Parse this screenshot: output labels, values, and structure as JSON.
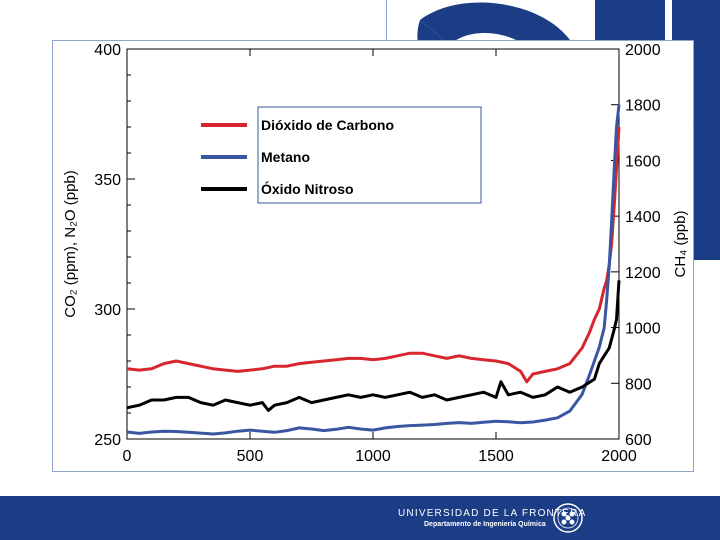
{
  "chart_data": {
    "type": "line",
    "title": "",
    "xlabel": "",
    "ylabel_left": "CO₂ (ppm), N₂O (ppb)",
    "ylabel_right": "CH₄ (ppb)",
    "xlim": [
      0,
      2000
    ],
    "ylim_left": [
      250,
      400
    ],
    "ylim_right": [
      600,
      2000
    ],
    "x_ticks": [
      "0",
      "500",
      "1000",
      "1500",
      "2000"
    ],
    "y_left_ticks": [
      "250",
      "300",
      "350",
      "400"
    ],
    "y_right_ticks": [
      "600",
      "800",
      "1000",
      "1200",
      "1400",
      "1600",
      "1800",
      "2000"
    ],
    "legend_position": "top-center",
    "series": [
      {
        "name": "Dióxido de Carbono",
        "axis": "left",
        "color": "#d7262d",
        "x": [
          0,
          50,
          100,
          150,
          200,
          250,
          300,
          350,
          400,
          450,
          500,
          550,
          600,
          650,
          700,
          750,
          800,
          850,
          900,
          950,
          1000,
          1050,
          1100,
          1150,
          1200,
          1250,
          1300,
          1350,
          1400,
          1450,
          1500,
          1550,
          1600,
          1625,
          1650,
          1700,
          1750,
          1800,
          1850,
          1880,
          1900,
          1920,
          1940,
          1950,
          1960,
          1970,
          1980,
          1990,
          2000
        ],
        "y": [
          277,
          276.5,
          277,
          279,
          280,
          279,
          278,
          277,
          276.5,
          276,
          276.5,
          277,
          278,
          278,
          279,
          279.5,
          280,
          280.5,
          281,
          281,
          280.5,
          281,
          282,
          283,
          283,
          282,
          281,
          282,
          281,
          280.5,
          280,
          279,
          276,
          272,
          275,
          276,
          277,
          279,
          285,
          291,
          296,
          300,
          308,
          311,
          317,
          325,
          339,
          354,
          370
        ]
      },
      {
        "name": "Metano",
        "axis": "right",
        "color": "#3a55a2",
        "x": [
          0,
          50,
          100,
          150,
          200,
          250,
          300,
          350,
          400,
          450,
          500,
          550,
          600,
          650,
          700,
          750,
          800,
          850,
          900,
          950,
          1000,
          1050,
          1100,
          1150,
          1200,
          1250,
          1300,
          1350,
          1400,
          1450,
          1500,
          1550,
          1600,
          1650,
          1700,
          1750,
          1800,
          1850,
          1880,
          1900,
          1920,
          1940,
          1950,
          1960,
          1970,
          1980,
          1990,
          2000
        ],
        "y": [
          625,
          620,
          625,
          628,
          627,
          624,
          621,
          618,
          622,
          628,
          632,
          628,
          624,
          630,
          640,
          636,
          630,
          635,
          642,
          636,
          632,
          640,
          645,
          648,
          650,
          652,
          656,
          659,
          656,
          660,
          664,
          662,
          658,
          661,
          668,
          676,
          700,
          760,
          830,
          880,
          930,
          1000,
          1100,
          1220,
          1380,
          1560,
          1720,
          1800
        ]
      },
      {
        "name": "Óxido Nitroso",
        "axis": "left",
        "color": "#000000",
        "x": [
          0,
          50,
          100,
          150,
          200,
          250,
          300,
          350,
          400,
          450,
          500,
          550,
          575,
          600,
          650,
          700,
          750,
          800,
          850,
          900,
          950,
          1000,
          1050,
          1100,
          1150,
          1200,
          1250,
          1300,
          1350,
          1400,
          1450,
          1500,
          1520,
          1550,
          1600,
          1650,
          1700,
          1750,
          1800,
          1850,
          1900,
          1920,
          1940,
          1960,
          1980,
          1990,
          2000
        ],
        "y": [
          262,
          263,
          265,
          265,
          266,
          266,
          264,
          263,
          265,
          264,
          263,
          264,
          261,
          263,
          264,
          266,
          264,
          265,
          266,
          267,
          266,
          267,
          266,
          267,
          268,
          266,
          267,
          265,
          266,
          267,
          268,
          266,
          272,
          267,
          268,
          266,
          267,
          270,
          268,
          270,
          273,
          279,
          282,
          285,
          292,
          296,
          311
        ]
      }
    ]
  },
  "footer": {
    "university": "UNIVERSIDAD DE LA FRONTERA",
    "department": "Departamento de Ingeniería Química"
  }
}
